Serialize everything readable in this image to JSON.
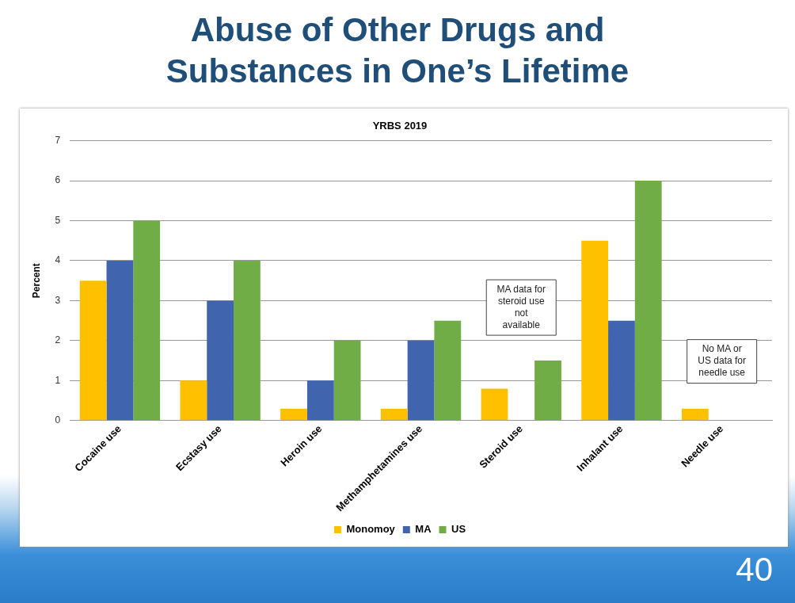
{
  "chart_data": {
    "type": "bar",
    "title": "Abuse of Other Drugs and Substances in One’s Lifetime",
    "subtitle": "YRBS 2019",
    "ylabel": "Percent",
    "categories": [
      "Cocaine use",
      "Ecstasy use",
      "Heroin use",
      "Methamphetamines use",
      "Steroid use",
      "Inhalant use",
      "Needle use"
    ],
    "series": [
      {
        "name": "Monomoy",
        "color": "#ffc000",
        "values": [
          3.5,
          1,
          0.3,
          0.3,
          0.8,
          4.5,
          0.3
        ]
      },
      {
        "name": "MA",
        "color": "#4064ad",
        "values": [
          4,
          3,
          1,
          2,
          null,
          2.5,
          null
        ]
      },
      {
        "name": "US",
        "color": "#70ad47",
        "values": [
          5,
          4,
          2,
          2.5,
          1.5,
          6,
          null
        ]
      }
    ],
    "ylim": [
      0,
      7
    ],
    "yticks": [
      0,
      1,
      2,
      3,
      4,
      5,
      6,
      7
    ],
    "grid": "y",
    "legend": "bottom",
    "annotations": [
      "MA data for steroid use not available",
      "No MA or US data for needle use",
      "40"
    ]
  }
}
